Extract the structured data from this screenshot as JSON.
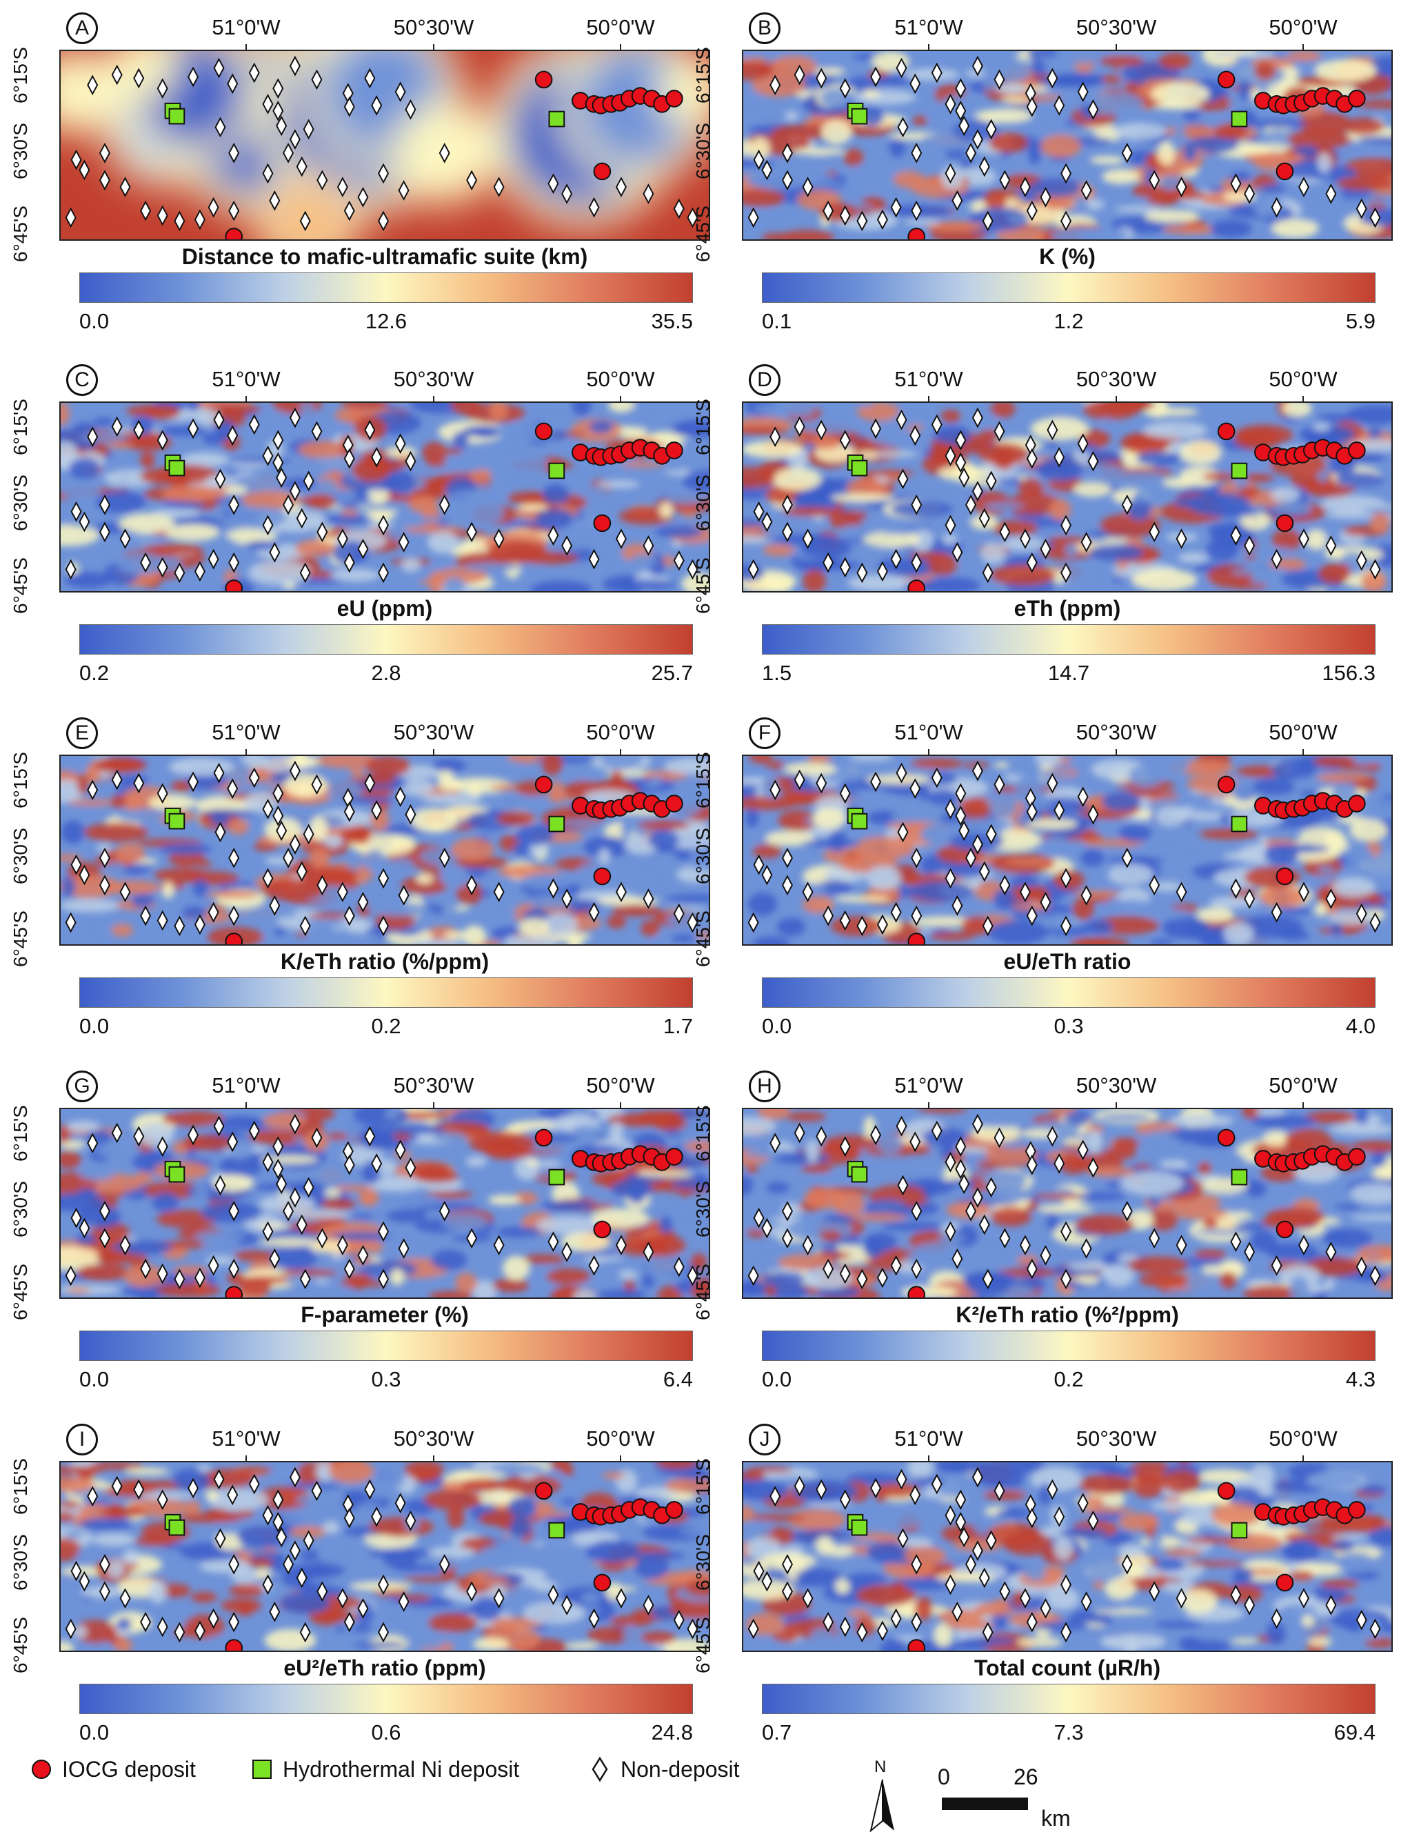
{
  "axis": {
    "lon_labels": [
      "51°0'W",
      "50°30'W",
      "50°0'W"
    ],
    "lat_labels": [
      "6°15'S",
      "6°30'S",
      "6°45'S"
    ]
  },
  "colors": {
    "ramp": [
      "#3d5ec9",
      "#6f93d8",
      "#bdd0e6",
      "#fdf7c1",
      "#f5be83",
      "#e07c5e",
      "#c2402f"
    ],
    "iocg": "#e8101a",
    "ni": "#7be125",
    "nondeposit": "#ffffff"
  },
  "panels": [
    {
      "letter": "A",
      "title": "Distance to mafic-ultramafic suite (km)",
      "min": "0.0",
      "mid": "12.6",
      "max": "35.5"
    },
    {
      "letter": "B",
      "title": "K (%)",
      "min": "0.1",
      "mid": "1.2",
      "max": "5.9"
    },
    {
      "letter": "C",
      "title": "eU (ppm)",
      "min": "0.2",
      "mid": "2.8",
      "max": "25.7"
    },
    {
      "letter": "D",
      "title": "eTh (ppm)",
      "min": "1.5",
      "mid": "14.7",
      "max": "156.3"
    },
    {
      "letter": "E",
      "title": "K/eTh ratio (%/ppm)",
      "min": "0.0",
      "mid": "0.2",
      "max": "1.7"
    },
    {
      "letter": "F",
      "title": "eU/eTh ratio",
      "min": "0.0",
      "mid": "0.3",
      "max": "4.0"
    },
    {
      "letter": "G",
      "title": "F-parameter (%)",
      "min": "0.0",
      "mid": "0.3",
      "max": "6.4"
    },
    {
      "letter": "H",
      "title": "K²/eTh ratio (%²/ppm)",
      "min": "0.0",
      "mid": "0.2",
      "max": "4.3"
    },
    {
      "letter": "I",
      "title": "eU²/eTh ratio (ppm)",
      "min": "0.0",
      "mid": "0.6",
      "max": "24.8"
    },
    {
      "letter": "J",
      "title": "Total count (µR/h)",
      "min": "0.7",
      "mid": "7.3",
      "max": "69.4"
    }
  ],
  "legend": {
    "iocg": "IOCG deposit",
    "ni": "Hydrothermal Ni deposit",
    "nondeposit": "Non-deposit"
  },
  "scalebar": {
    "north": "N",
    "start": "0",
    "end": "26",
    "unit": "km"
  }
}
